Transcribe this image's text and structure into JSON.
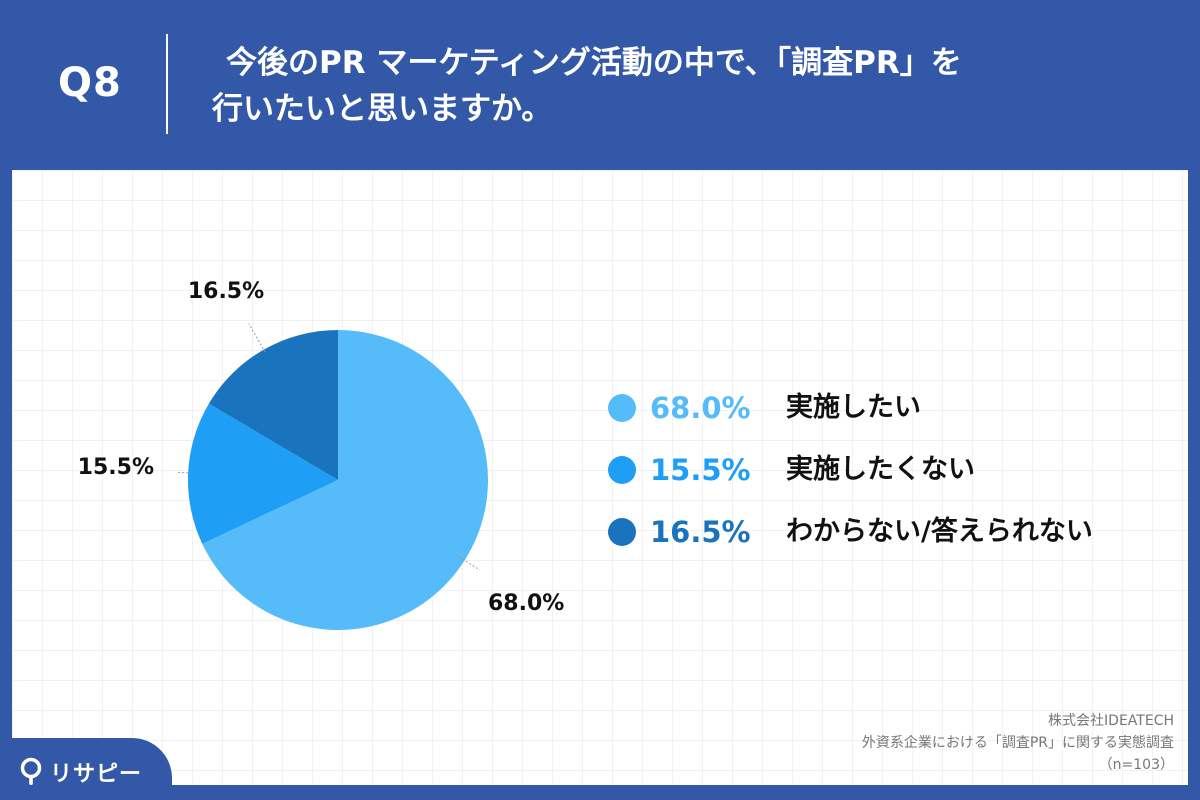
{
  "header": {
    "q_number": "Q8",
    "question_line1": "今後のPR マーケティング活動の中で、「調査PR」を",
    "question_line2": "行いたいと思いますか。"
  },
  "colors": {
    "background": "#3458a8",
    "slice_1": "#56bcf9",
    "slice_2": "#1e9ef5",
    "slice_3": "#1a73bd"
  },
  "chart_data": {
    "type": "pie",
    "start": "12 o'clock, clockwise",
    "categories": [
      "実施したい",
      "実施したくない",
      "わからない/答えられない"
    ],
    "values": [
      68.0,
      15.5,
      16.5
    ],
    "value_labels": [
      "68.0%",
      "15.5%",
      "16.5%"
    ],
    "colors": [
      "#56bcf9",
      "#1e9ef5",
      "#1a73bd"
    ],
    "legend_position": "right"
  },
  "source": {
    "company": "株式会社IDEATECH",
    "survey": "外資系企業における「調査PR」に関する実態調査",
    "sample": "（n=103）"
  },
  "logo": {
    "icon": "pin-icon",
    "text": "リサピー"
  }
}
